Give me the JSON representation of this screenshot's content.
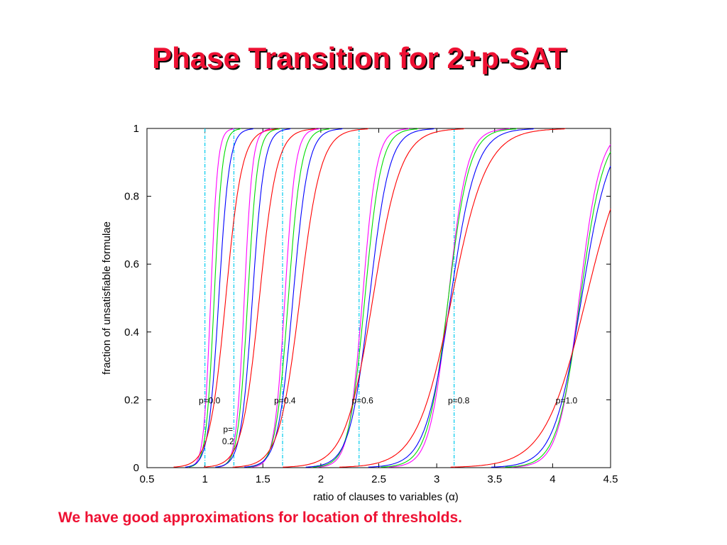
{
  "slide": {
    "title": "Phase Transition for 2+p-SAT",
    "footnote": "We have good approximations for location of thresholds.",
    "title_color": "#ee1133",
    "footnote_color": "#ee1133"
  },
  "chart_data": {
    "type": "line",
    "title": "",
    "xlabel": "ratio of clauses to variables (α)",
    "ylabel": "fraction of unsatisfiable formulae",
    "xlim": [
      0.5,
      4.5
    ],
    "ylim": [
      0,
      1
    ],
    "xticks": [
      0.5,
      1,
      1.5,
      2,
      2.5,
      3,
      3.5,
      4,
      4.5
    ],
    "xtick_labels": [
      "0.5",
      "1",
      "1.5",
      "2",
      "2.5",
      "3",
      "3.5",
      "4",
      "4.5"
    ],
    "yticks": [
      0,
      0.2,
      0.4,
      0.6,
      0.8,
      1
    ],
    "ytick_labels": [
      "0",
      "0.2",
      "0.4",
      "0.6",
      "0.8",
      "1"
    ],
    "grid": false,
    "series_colors": [
      "#ff00ff",
      "#00dd00",
      "#0000ff",
      "#ff0000"
    ],
    "threshold_color": "#00ccee",
    "groups": [
      {
        "label": "p=0.0",
        "threshold_alpha": 1.0,
        "midpoints": [
          1.05,
          1.08,
          1.12,
          1.18
        ],
        "widths": [
          0.03,
          0.035,
          0.045,
          0.07
        ]
      },
      {
        "label": "p=\n0.2",
        "threshold_alpha": 1.25,
        "midpoints": [
          1.34,
          1.37,
          1.41,
          1.47
        ],
        "widths": [
          0.035,
          0.042,
          0.05,
          0.075
        ]
      },
      {
        "label": "p=0.4",
        "threshold_alpha": 1.67,
        "midpoints": [
          1.69,
          1.72,
          1.76,
          1.82
        ],
        "widths": [
          0.045,
          0.055,
          0.065,
          0.09
        ]
      },
      {
        "label": "p=0.6",
        "threshold_alpha": 2.33,
        "midpoints": [
          2.36,
          2.38,
          2.42,
          2.45
        ],
        "widths": [
          0.06,
          0.07,
          0.085,
          0.12
        ]
      },
      {
        "label": "p=0.8",
        "threshold_alpha": 3.15,
        "midpoints": [
          3.1,
          3.1,
          3.12,
          3.13
        ],
        "widths": [
          0.08,
          0.09,
          0.11,
          0.15
        ]
      },
      {
        "label": "p=1.0",
        "threshold_alpha": null,
        "midpoints": [
          4.23,
          4.24,
          4.25,
          4.29
        ],
        "widths": [
          0.09,
          0.1,
          0.12,
          0.18
        ]
      }
    ],
    "label_positions_alpha": [
      1.04,
      1.35,
      1.69,
      2.36,
      3.19,
      4.12
    ],
    "label_y": 0.2
  }
}
